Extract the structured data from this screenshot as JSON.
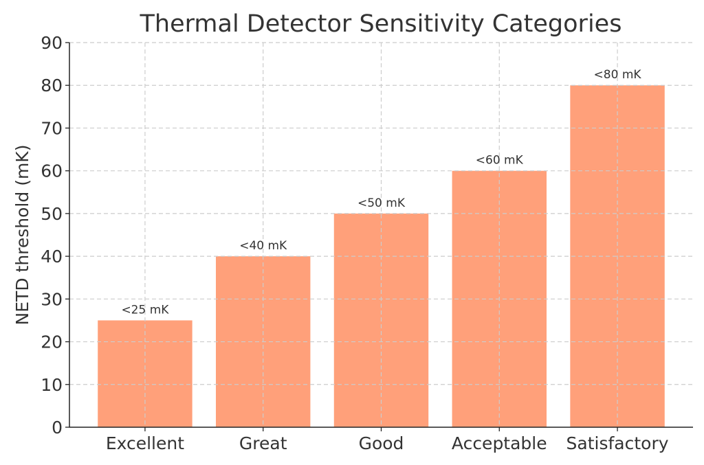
{
  "chart_data": {
    "type": "bar",
    "title": "Thermal Detector Sensitivity Categories",
    "xlabel": "",
    "ylabel": "NETD threshold (mK)",
    "categories": [
      "Excellent",
      "Great",
      "Good",
      "Acceptable",
      "Satisfactory"
    ],
    "values": [
      25,
      40,
      50,
      60,
      80
    ],
    "data_labels": [
      "<25 mK",
      "<40 mK",
      "<50 mK",
      "<60 mK",
      "<80 mK"
    ],
    "ylim": [
      0,
      90
    ],
    "yticks": [
      "0",
      "10",
      "20",
      "30",
      "40",
      "50",
      "60",
      "70",
      "80",
      "90"
    ],
    "grid": true,
    "bar_color": "#FFA07A",
    "text_color": "#333333",
    "grid_color": "#cccccc"
  }
}
